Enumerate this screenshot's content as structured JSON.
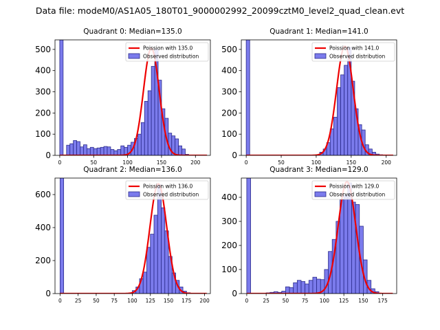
{
  "figure": {
    "suptitle": "Data file: modeM0/AS1A05_180T01_9000002992_20099cztM0_level2_quad_clean.evt"
  },
  "colors": {
    "hist_fill": "#7b7bec",
    "hist_edge": "#2a2a8a",
    "poisson_line": "#ee0000",
    "axes": "#000000"
  },
  "chart_data": [
    {
      "type": "bar",
      "title": "Quadrant 0: Median=135.0",
      "xlim": [
        -7,
        222
      ],
      "ylim": [
        0,
        545
      ],
      "xticks": [
        0,
        50,
        100,
        150,
        200
      ],
      "yticks": [
        0,
        100,
        200,
        300,
        400,
        500
      ],
      "bin_width": 5,
      "bins": [
        [
          0,
          548
        ],
        [
          5,
          0
        ],
        [
          10,
          48
        ],
        [
          15,
          55
        ],
        [
          20,
          70
        ],
        [
          25,
          65
        ],
        [
          30,
          40
        ],
        [
          35,
          50
        ],
        [
          40,
          32
        ],
        [
          45,
          38
        ],
        [
          50,
          32
        ],
        [
          55,
          35
        ],
        [
          60,
          38
        ],
        [
          65,
          42
        ],
        [
          70,
          40
        ],
        [
          75,
          28
        ],
        [
          80,
          22
        ],
        [
          85,
          28
        ],
        [
          90,
          45
        ],
        [
          95,
          38
        ],
        [
          100,
          48
        ],
        [
          105,
          62
        ],
        [
          110,
          80
        ],
        [
          115,
          100
        ],
        [
          120,
          155
        ],
        [
          125,
          255
        ],
        [
          130,
          305
        ],
        [
          135,
          420
        ],
        [
          140,
          500
        ],
        [
          145,
          355
        ],
        [
          150,
          220
        ],
        [
          155,
          175
        ],
        [
          160,
          105
        ],
        [
          165,
          92
        ],
        [
          170,
          78
        ],
        [
          175,
          45
        ],
        [
          180,
          30
        ],
        [
          185,
          5
        ],
        [
          190,
          0
        ],
        [
          195,
          0
        ],
        [
          200,
          0
        ],
        [
          205,
          0
        ]
      ],
      "poisson_mean": 135.0,
      "poisson_peak": 505,
      "legend": [
        "Poission with 135.0",
        "Observed distribution"
      ]
    },
    {
      "type": "bar",
      "title": "Quadrant 1: Median=141.0",
      "xlim": [
        -7,
        215
      ],
      "ylim": [
        0,
        545
      ],
      "xticks": [
        0,
        50,
        100,
        150,
        200
      ],
      "yticks": [
        0,
        100,
        200,
        300,
        400,
        500
      ],
      "bin_width": 5,
      "bins": [
        [
          0,
          548
        ],
        [
          5,
          0
        ],
        [
          10,
          0
        ],
        [
          15,
          0
        ],
        [
          20,
          0
        ],
        [
          25,
          0
        ],
        [
          30,
          0
        ],
        [
          35,
          0
        ],
        [
          40,
          0
        ],
        [
          45,
          0
        ],
        [
          50,
          0
        ],
        [
          55,
          0
        ],
        [
          60,
          0
        ],
        [
          65,
          0
        ],
        [
          70,
          0
        ],
        [
          75,
          0
        ],
        [
          80,
          0
        ],
        [
          85,
          0
        ],
        [
          90,
          0
        ],
        [
          95,
          0
        ],
        [
          100,
          3
        ],
        [
          105,
          15
        ],
        [
          110,
          30
        ],
        [
          115,
          60
        ],
        [
          120,
          125
        ],
        [
          125,
          180
        ],
        [
          130,
          320
        ],
        [
          135,
          380
        ],
        [
          140,
          425
        ],
        [
          145,
          510
        ],
        [
          150,
          350
        ],
        [
          155,
          220
        ],
        [
          160,
          145
        ],
        [
          165,
          120
        ],
        [
          170,
          50
        ],
        [
          175,
          30
        ],
        [
          180,
          15
        ],
        [
          185,
          6
        ],
        [
          190,
          3
        ],
        [
          195,
          0
        ],
        [
          200,
          0
        ]
      ],
      "poisson_mean": 141.0,
      "poisson_peak": 515,
      "legend": [
        "Poission with 141.0",
        "Observed distribution"
      ]
    },
    {
      "type": "bar",
      "title": "Quadrant 2: Median=136.0",
      "xlim": [
        -7,
        208
      ],
      "ylim": [
        0,
        700
      ],
      "xticks": [
        0,
        25,
        50,
        75,
        100,
        125,
        150,
        175,
        200
      ],
      "yticks": [
        0,
        200,
        400,
        600
      ],
      "bin_width": 5,
      "bins": [
        [
          0,
          705
        ],
        [
          5,
          0
        ],
        [
          10,
          0
        ],
        [
          15,
          0
        ],
        [
          20,
          0
        ],
        [
          25,
          0
        ],
        [
          30,
          0
        ],
        [
          35,
          0
        ],
        [
          40,
          0
        ],
        [
          45,
          0
        ],
        [
          50,
          0
        ],
        [
          55,
          0
        ],
        [
          60,
          0
        ],
        [
          65,
          0
        ],
        [
          70,
          0
        ],
        [
          75,
          0
        ],
        [
          80,
          0
        ],
        [
          85,
          0
        ],
        [
          90,
          0
        ],
        [
          95,
          0
        ],
        [
          100,
          18
        ],
        [
          105,
          40
        ],
        [
          110,
          90
        ],
        [
          115,
          130
        ],
        [
          120,
          280
        ],
        [
          125,
          360
        ],
        [
          130,
          475
        ],
        [
          135,
          660
        ],
        [
          140,
          520
        ],
        [
          145,
          380
        ],
        [
          150,
          225
        ],
        [
          155,
          125
        ],
        [
          160,
          80
        ],
        [
          165,
          40
        ],
        [
          170,
          15
        ],
        [
          175,
          5
        ],
        [
          180,
          0
        ],
        [
          185,
          0
        ],
        [
          190,
          0
        ],
        [
          195,
          0
        ]
      ],
      "poisson_mean": 136.0,
      "poisson_peak": 665,
      "legend": [
        "Poission with 136.0",
        "Observed distribution"
      ]
    },
    {
      "type": "bar",
      "title": "Quadrant 3: Median=129.0",
      "xlim": [
        -7,
        193
      ],
      "ylim": [
        0,
        480
      ],
      "xticks": [
        0,
        25,
        50,
        75,
        100,
        125,
        150,
        175
      ],
      "yticks": [
        0,
        100,
        200,
        300,
        400
      ],
      "bin_width": 5,
      "bins": [
        [
          0,
          480
        ],
        [
          5,
          0
        ],
        [
          10,
          0
        ],
        [
          15,
          0
        ],
        [
          20,
          0
        ],
        [
          25,
          3
        ],
        [
          30,
          5
        ],
        [
          35,
          8
        ],
        [
          40,
          5
        ],
        [
          45,
          10
        ],
        [
          50,
          28
        ],
        [
          55,
          25
        ],
        [
          60,
          45
        ],
        [
          65,
          55
        ],
        [
          70,
          50
        ],
        [
          75,
          40
        ],
        [
          80,
          55
        ],
        [
          85,
          68
        ],
        [
          90,
          60
        ],
        [
          95,
          58
        ],
        [
          100,
          100
        ],
        [
          105,
          175
        ],
        [
          110,
          225
        ],
        [
          115,
          300
        ],
        [
          120,
          390
        ],
        [
          125,
          410
        ],
        [
          130,
          460
        ],
        [
          135,
          380
        ],
        [
          140,
          370
        ],
        [
          145,
          280
        ],
        [
          150,
          140
        ],
        [
          155,
          55
        ],
        [
          160,
          20
        ],
        [
          165,
          8
        ],
        [
          170,
          0
        ],
        [
          175,
          0
        ]
      ],
      "poisson_mean": 129.0,
      "poisson_peak": 465,
      "legend": [
        "Poission with 129.0",
        "Observed distribution"
      ]
    }
  ]
}
